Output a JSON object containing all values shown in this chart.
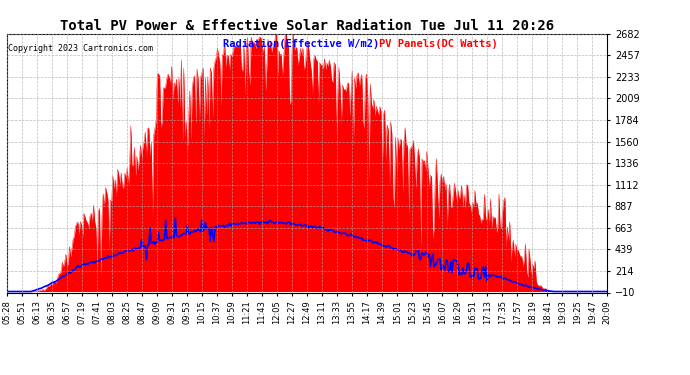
{
  "title": "Total PV Power & Effective Solar Radiation Tue Jul 11 20:26",
  "copyright": "Copyright 2023 Cartronics.com",
  "legend_radiation": "Radiation(Effective W/m2)",
  "legend_pv": "PV Panels(DC Watts)",
  "background_color": "#ffffff",
  "plot_bg_color": "#ffffff",
  "grid_color": "#aaaaaa",
  "title_color": "#000000",
  "radiation_color": "#0000ff",
  "pv_color": "#ff0000",
  "ylim_min": -10.1,
  "ylim_max": 2681.7,
  "yticks": [
    2681.7,
    2457.4,
    2233.1,
    2008.8,
    1784.5,
    1560.1,
    1335.8,
    1111.5,
    887.2,
    662.9,
    438.6,
    214.3,
    -10.1
  ],
  "xtick_labels": [
    "05:28",
    "05:51",
    "06:13",
    "06:35",
    "06:57",
    "07:19",
    "07:41",
    "08:03",
    "08:25",
    "08:47",
    "09:09",
    "09:31",
    "09:53",
    "10:15",
    "10:37",
    "10:59",
    "11:21",
    "11:43",
    "12:05",
    "12:27",
    "12:49",
    "13:11",
    "13:33",
    "13:55",
    "14:17",
    "14:39",
    "15:01",
    "15:23",
    "15:45",
    "16:07",
    "16:29",
    "16:51",
    "17:13",
    "17:35",
    "17:57",
    "18:19",
    "18:41",
    "19:03",
    "19:25",
    "19:47",
    "20:09"
  ],
  "n_points": 500,
  "pv_peak": 2600,
  "radiation_peak": 720
}
